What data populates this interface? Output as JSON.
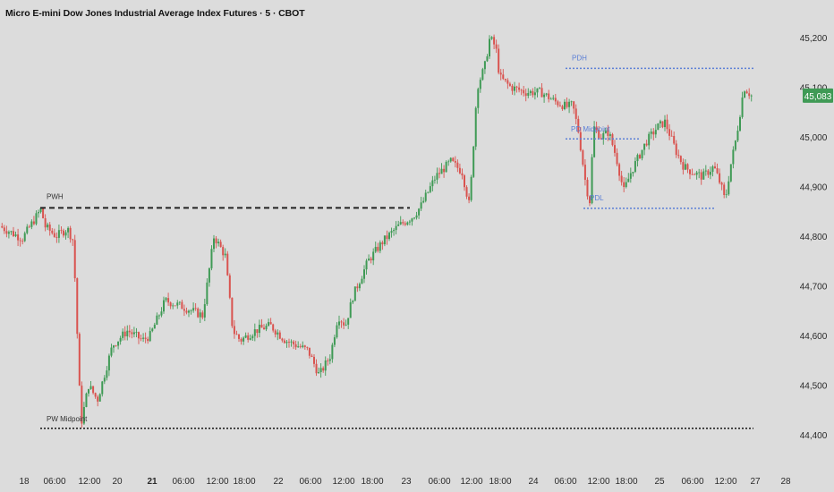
{
  "title": "Micro E-mini Dow Jones Industrial Average Index Futures · 5 · CBOT",
  "colors": {
    "background": "#dcdcdc",
    "up": "#3f9a55",
    "down": "#d9534f",
    "pdh_pdl": "#5b7fd6",
    "pwh": "#222222",
    "price_badge": "#3f9a55",
    "axis_text": "#2a2a2a"
  },
  "chart_data": {
    "type": "candlestick",
    "y_axis": {
      "ticks": [
        "45,200",
        "45,100",
        "45,000",
        "44,900",
        "44,800",
        "44,700",
        "44,600",
        "44,500",
        "44,400"
      ],
      "tick_values": [
        45200,
        45100,
        45000,
        44900,
        44800,
        44700,
        44600,
        44500,
        44400
      ],
      "range": [
        44365,
        45250
      ]
    },
    "x_axis": {
      "ticks": [
        {
          "label": "18",
          "bold": false
        },
        {
          "label": "06:00",
          "bold": false
        },
        {
          "label": "12:00",
          "bold": false
        },
        {
          "label": "20",
          "bold": false
        },
        {
          "label": "21",
          "bold": true
        },
        {
          "label": "06:00",
          "bold": false
        },
        {
          "label": "12:00",
          "bold": false
        },
        {
          "label": "18:00",
          "bold": false
        },
        {
          "label": "22",
          "bold": false
        },
        {
          "label": "06:00",
          "bold": false
        },
        {
          "label": "12:00",
          "bold": false
        },
        {
          "label": "18:00",
          "bold": false
        },
        {
          "label": "23",
          "bold": false
        },
        {
          "label": "06:00",
          "bold": false
        },
        {
          "label": "12:00",
          "bold": false
        },
        {
          "label": "18:00",
          "bold": false
        },
        {
          "label": "24",
          "bold": false
        },
        {
          "label": "06:00",
          "bold": false
        },
        {
          "label": "12:00",
          "bold": false
        },
        {
          "label": "18:00",
          "bold": false
        },
        {
          "label": "25",
          "bold": false
        },
        {
          "label": "06:00",
          "bold": false
        },
        {
          "label": "12:00",
          "bold": false
        },
        {
          "label": "27",
          "bold": false
        },
        {
          "label": "28",
          "bold": false
        }
      ]
    },
    "last_price": {
      "label": "45,083",
      "value": 45083
    },
    "levels": [
      {
        "label": "PWH",
        "value": 44857
      },
      {
        "label": "PW Midpoint",
        "value": 44413
      },
      {
        "label": "PDH",
        "value": 45138
      },
      {
        "label": "PD Midpoint",
        "value": 44996
      },
      {
        "label": "PDL",
        "value": 44856
      }
    ],
    "path": [
      [
        0,
        44820
      ],
      [
        0.03,
        44795
      ],
      [
        0.055,
        44855
      ],
      [
        0.06,
        44820
      ],
      [
        0.075,
        44800
      ],
      [
        0.09,
        44815
      ],
      [
        0.098,
        44790
      ],
      [
        0.108,
        44420
      ],
      [
        0.118,
        44500
      ],
      [
        0.13,
        44470
      ],
      [
        0.15,
        44580
      ],
      [
        0.17,
        44610
      ],
      [
        0.19,
        44590
      ],
      [
        0.2,
        44600
      ],
      [
        0.22,
        44670
      ],
      [
        0.24,
        44660
      ],
      [
        0.255,
        44650
      ],
      [
        0.27,
        44640
      ],
      [
        0.285,
        44800
      ],
      [
        0.3,
        44760
      ],
      [
        0.31,
        44610
      ],
      [
        0.32,
        44590
      ],
      [
        0.34,
        44610
      ],
      [
        0.36,
        44620
      ],
      [
        0.38,
        44590
      ],
      [
        0.41,
        44570
      ],
      [
        0.425,
        44520
      ],
      [
        0.44,
        44560
      ],
      [
        0.45,
        44640
      ],
      [
        0.46,
        44620
      ],
      [
        0.47,
        44680
      ],
      [
        0.49,
        44750
      ],
      [
        0.51,
        44790
      ],
      [
        0.53,
        44820
      ],
      [
        0.55,
        44840
      ],
      [
        0.56,
        44860
      ],
      [
        0.58,
        44920
      ],
      [
        0.6,
        44950
      ],
      [
        0.615,
        44930
      ],
      [
        0.625,
        44860
      ],
      [
        0.635,
        45100
      ],
      [
        0.645,
        45140
      ],
      [
        0.652,
        45200
      ],
      [
        0.66,
        45180
      ],
      [
        0.665,
        45120
      ],
      [
        0.68,
        45100
      ],
      [
        0.7,
        45090
      ],
      [
        0.72,
        45090
      ],
      [
        0.74,
        45070
      ],
      [
        0.755,
        45060
      ],
      [
        0.762,
        45065
      ],
      [
        0.77,
        45010
      ],
      [
        0.78,
        44900
      ],
      [
        0.785,
        44870
      ],
      [
        0.79,
        45020
      ],
      [
        0.8,
        45000
      ],
      [
        0.81,
        45010
      ],
      [
        0.82,
        44960
      ],
      [
        0.83,
        44890
      ],
      [
        0.84,
        44930
      ],
      [
        0.86,
        44990
      ],
      [
        0.875,
        45020
      ],
      [
        0.885,
        45030
      ],
      [
        0.9,
        44970
      ],
      [
        0.91,
        44940
      ],
      [
        0.92,
        44930
      ],
      [
        0.935,
        44920
      ],
      [
        0.95,
        44940
      ],
      [
        0.96,
        44900
      ],
      [
        0.965,
        44870
      ],
      [
        0.972,
        44940
      ],
      [
        0.98,
        45000
      ],
      [
        0.99,
        45100
      ],
      [
        1.0,
        45083
      ]
    ]
  }
}
